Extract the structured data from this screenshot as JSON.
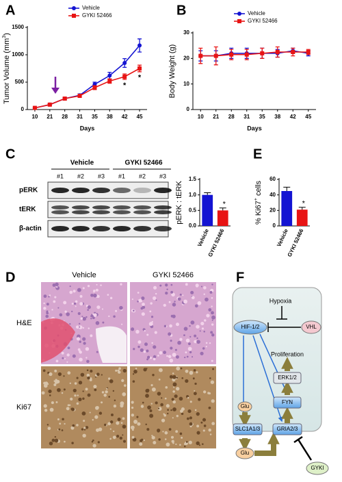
{
  "chart_data": [
    {
      "type": "line",
      "panel": "A",
      "ylabel": "Tumor Volume (mm",
      "ylabel_sup": "3",
      "ylabel_end": ")",
      "xlabel": "Days",
      "categories": [
        "10",
        "21",
        "28",
        "31",
        "35",
        "38",
        "42",
        "45"
      ],
      "series": [
        {
          "name": "Vehicle",
          "color": "#1414d2",
          "marker": "circle",
          "values": [
            30,
            90,
            200,
            260,
            460,
            620,
            850,
            1170
          ],
          "errors": [
            10,
            15,
            20,
            25,
            40,
            60,
            80,
            120
          ]
        },
        {
          "name": "GYKI 52466",
          "color": "#e81414",
          "marker": "square",
          "values": [
            30,
            90,
            200,
            250,
            400,
            520,
            600,
            750
          ],
          "errors": [
            10,
            15,
            20,
            25,
            35,
            40,
            50,
            60
          ]
        }
      ],
      "ylim": [
        0,
        1500
      ],
      "yticks": [
        0,
        500,
        1000,
        1500
      ],
      "annotations": [
        "*",
        "*"
      ]
    },
    {
      "type": "line",
      "panel": "B",
      "ylabel": "Body Weight (g)",
      "xlabel": "Days",
      "categories": [
        "10",
        "21",
        "28",
        "31",
        "35",
        "38",
        "42",
        "45"
      ],
      "series": [
        {
          "name": "Vehicle",
          "color": "#1414d2",
          "marker": "circle",
          "values": [
            21,
            21,
            22,
            22,
            22,
            22,
            23,
            22
          ],
          "errors": [
            2,
            2,
            2,
            2,
            2,
            1.5,
            1,
            1
          ]
        },
        {
          "name": "GYKI 52466",
          "color": "#e81414",
          "marker": "square",
          "values": [
            21,
            21,
            21.5,
            21.5,
            22,
            22.5,
            22.5,
            22.5
          ],
          "errors": [
            3,
            3.5,
            2,
            2,
            2,
            2,
            1.5,
            1
          ]
        }
      ],
      "ylim": [
        0,
        30
      ],
      "yticks": [
        0,
        10,
        20,
        30
      ]
    },
    {
      "type": "bar",
      "ylabel": "pERK : tERK",
      "categories": [
        "Vehicle",
        "GYKI 52466"
      ],
      "values": [
        1,
        0.5
      ],
      "errors": [
        0.07,
        0.08
      ],
      "colors": [
        "#1414d2",
        "#e81414"
      ],
      "ylim": [
        0,
        1.5
      ],
      "yticks": [
        {
          "value": 0,
          "label": "0.0"
        },
        {
          "value": 0.5,
          "label": "0.5"
        },
        {
          "value": 1,
          "label": "1.0"
        },
        {
          "value": 1.5,
          "label": "1.5"
        }
      ],
      "annotations": [
        "*"
      ]
    },
    {
      "type": "bar",
      "panel": "E",
      "ylabel": "% Ki67",
      "ylabel_sup": "+",
      "ylabel_end": " cells",
      "categories": [
        "Vehicle",
        "GYKI 52466"
      ],
      "values": [
        45,
        21
      ],
      "errors": [
        5,
        3
      ],
      "colors": [
        "#1414d2",
        "#e81414"
      ],
      "ylim": [
        0,
        60
      ],
      "yticks": [
        0,
        20,
        40,
        60
      ],
      "annotations": [
        "*"
      ]
    }
  ],
  "blot": {
    "panel": "C",
    "groups": [
      "Vehicle",
      "GYKI 52466"
    ],
    "lanes": [
      "#1",
      "#2",
      "#3",
      "#1",
      "#2",
      "#3"
    ],
    "rows": [
      "pERK",
      "tERK",
      "β-actin"
    ]
  },
  "histology": {
    "panel": "D",
    "columns": [
      "Vehicle",
      "GYKI 52466"
    ],
    "rows": [
      "H&E",
      "Ki67"
    ]
  },
  "diagram": {
    "panel": "F",
    "nodes": [
      {
        "label": "Hypoxia"
      },
      {
        "label": "HIF-1/2"
      },
      {
        "label": "VHL"
      },
      {
        "label": "Proliferation"
      },
      {
        "label": "ERK1/2"
      },
      {
        "label": "FYN"
      },
      {
        "label": "Glu"
      },
      {
        "label": "SLC1A1/3"
      },
      {
        "label": "GRIA2/3"
      },
      {
        "label": "Glu"
      },
      {
        "label": "GYKI"
      }
    ]
  }
}
